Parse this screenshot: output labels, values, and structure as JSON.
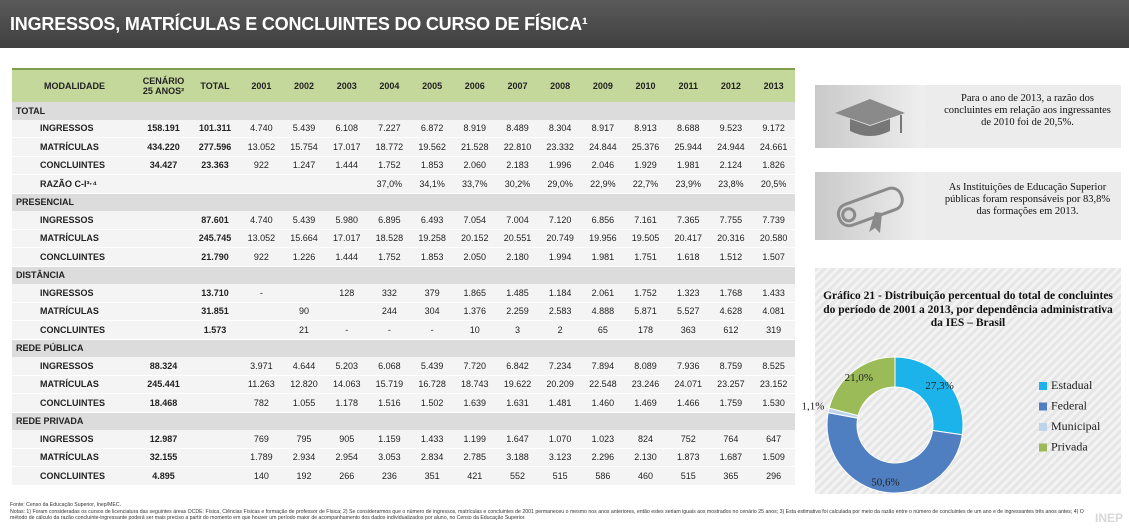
{
  "header": {
    "title": "INGRESSOS, MATRÍCULAS E CONCLUINTES DO CURSO DE FÍSICA¹"
  },
  "table": {
    "header": [
      "MODALIDADE",
      "CENÁRIO\n25 ANOS²",
      "TOTAL",
      "2001",
      "2002",
      "2003",
      "2004",
      "2005",
      "2006",
      "2007",
      "2008",
      "2009",
      "2010",
      "2011",
      "2012",
      "2013"
    ],
    "sections": [
      {
        "title": "TOTAL",
        "rows": [
          [
            "INGRESSOS",
            "158.191",
            "101.311",
            "4.740",
            "5.439",
            "6.108",
            "7.227",
            "6.872",
            "8.919",
            "8.489",
            "8.304",
            "8.917",
            "8.913",
            "8.688",
            "9.523",
            "9.172"
          ],
          [
            "MATRÍCULAS",
            "434.220",
            "277.596",
            "13.052",
            "15.754",
            "17.017",
            "18.772",
            "19.562",
            "21.528",
            "22.810",
            "23.332",
            "24.844",
            "25.376",
            "25.944",
            "24.944",
            "24.661"
          ],
          [
            "CONCLUINTES",
            "34.427",
            "23.363",
            "922",
            "1.247",
            "1.444",
            "1.752",
            "1.853",
            "2.060",
            "2.183",
            "1.996",
            "2.046",
            "1.929",
            "1.981",
            "2.124",
            "1.826"
          ],
          [
            "RAZÃO C-I³·⁴",
            null,
            null,
            null,
            null,
            null,
            "37,0%",
            "34,1%",
            "33,7%",
            "30,2%",
            "29,0%",
            "22,9%",
            "22,7%",
            "23,9%",
            "23,8%",
            "20,5%"
          ]
        ]
      },
      {
        "title": "PRESENCIAL",
        "rows": [
          [
            "INGRESSOS",
            null,
            "87.601",
            "4.740",
            "5.439",
            "5.980",
            "6.895",
            "6.493",
            "7.054",
            "7.004",
            "7.120",
            "6.856",
            "7.161",
            "7.365",
            "7.755",
            "7.739"
          ],
          [
            "MATRÍCULAS",
            null,
            "245.745",
            "13.052",
            "15.664",
            "17.017",
            "18.528",
            "19.258",
            "20.152",
            "20.551",
            "20.749",
            "19.956",
            "19.505",
            "20.417",
            "20.316",
            "20.580"
          ],
          [
            "CONCLUINTES",
            null,
            "21.790",
            "922",
            "1.226",
            "1.444",
            "1.752",
            "1.853",
            "2.050",
            "2.180",
            "1.994",
            "1.981",
            "1.751",
            "1.618",
            "1.512",
            "1.507"
          ]
        ]
      },
      {
        "title": "DISTÂNCIA",
        "rows": [
          [
            "INGRESSOS",
            null,
            "13.710",
            "-",
            null,
            "128",
            "332",
            "379",
            "1.865",
            "1.485",
            "1.184",
            "2.061",
            "1.752",
            "1.323",
            "1.768",
            "1.433"
          ],
          [
            "MATRÍCULAS",
            null,
            "31.851",
            null,
            "90",
            null,
            "244",
            "304",
            "1.376",
            "2.259",
            "2.583",
            "4.888",
            "5.871",
            "5.527",
            "4.628",
            "4.081"
          ],
          [
            "CONCLUINTES",
            null,
            "1.573",
            null,
            "21",
            "-",
            "-",
            "-",
            "10",
            "3",
            "2",
            "65",
            "178",
            "363",
            "612",
            "319"
          ]
        ]
      },
      {
        "title": "REDE PÚBLICA",
        "rows": [
          [
            "INGRESSOS",
            "88.324",
            null,
            "3.971",
            "4.644",
            "5.203",
            "6.068",
            "5.439",
            "7.720",
            "6.842",
            "7.234",
            "7.894",
            "8.089",
            "7.936",
            "8.759",
            "8.525"
          ],
          [
            "MATRÍCULAS",
            "245.441",
            null,
            "11.263",
            "12.820",
            "14.063",
            "15.719",
            "16.728",
            "18.743",
            "19.622",
            "20.209",
            "22.548",
            "23.246",
            "24.071",
            "23.257",
            "23.152"
          ],
          [
            "CONCLUINTES",
            "18.468",
            null,
            "782",
            "1.055",
            "1.178",
            "1.516",
            "1.502",
            "1.639",
            "1.631",
            "1.481",
            "1.460",
            "1.469",
            "1.466",
            "1.759",
            "1.530"
          ]
        ]
      },
      {
        "title": "REDE PRIVADA",
        "rows": [
          [
            "INGRESSOS",
            "12.987",
            null,
            "769",
            "795",
            "905",
            "1.159",
            "1.433",
            "1.199",
            "1.647",
            "1.070",
            "1.023",
            "824",
            "752",
            "764",
            "647"
          ],
          [
            "MATRÍCULAS",
            "32.155",
            null,
            "1.789",
            "2.934",
            "2.954",
            "3.053",
            "2.834",
            "2.785",
            "3.188",
            "3.123",
            "2.296",
            "2.130",
            "1.873",
            "1.687",
            "1.509"
          ],
          [
            "CONCLUINTES",
            "4.895",
            null,
            "140",
            "192",
            "266",
            "236",
            "351",
            "421",
            "552",
            "515",
            "586",
            "460",
            "515",
            "365",
            "296"
          ]
        ]
      }
    ]
  },
  "highlights": [
    "Para o ano de 2013, a razão dos concluintes em relação aos ingressantes de 2010 foi de 20,5%.",
    "As Instituições de Educação Superior públicas foram responsáveis por 83,8% das formações em 2013."
  ],
  "chart_data": {
    "type": "pie",
    "donut": true,
    "title": "Gráfico 21 - Distribuição percentual do total de concluintes do período de 2001 a 2013, por dependência administrativa da IES – Brasil",
    "categories": [
      "Estadual",
      "Federal",
      "Municipal",
      "Privada"
    ],
    "values": [
      27.3,
      50.6,
      1.1,
      21.0
    ],
    "value_labels": [
      "27,3%",
      "50,6%",
      "1,1%",
      "21,0%"
    ],
    "colors": [
      "#1cb3ea",
      "#4f7fc0",
      "#bcd4ec",
      "#9bbb59"
    ],
    "legend": "right"
  },
  "footer": {
    "source": "Fonte: Censo da Educação Superior, Inep/MEC.",
    "notes": "Notas: 1) Foram consideradas os cursos de licenciatura das seguintes áreas OCDE: Física, Ciências Físicas e formação de professor de Física; 2) Se considerarmos que o número de ingressos, matrículas e concluintes de 2001 permaneceu o mesmo nos anos anteriores, então estes seriam iguais aos mostrados no cenário 25 anos; 3) Esta estimativa foi calculada por meio da razão entre o número de concluintes de um ano e de ingressantes três anos antes; 4) O método de cálculo da razão concluinte-ingressante poderá ser mais preciso a partir do momento em que houver um período maior de acompanhamento dos dados individualizados por aluno, no Censo da Educação Superior.",
    "logo": "INEP"
  }
}
